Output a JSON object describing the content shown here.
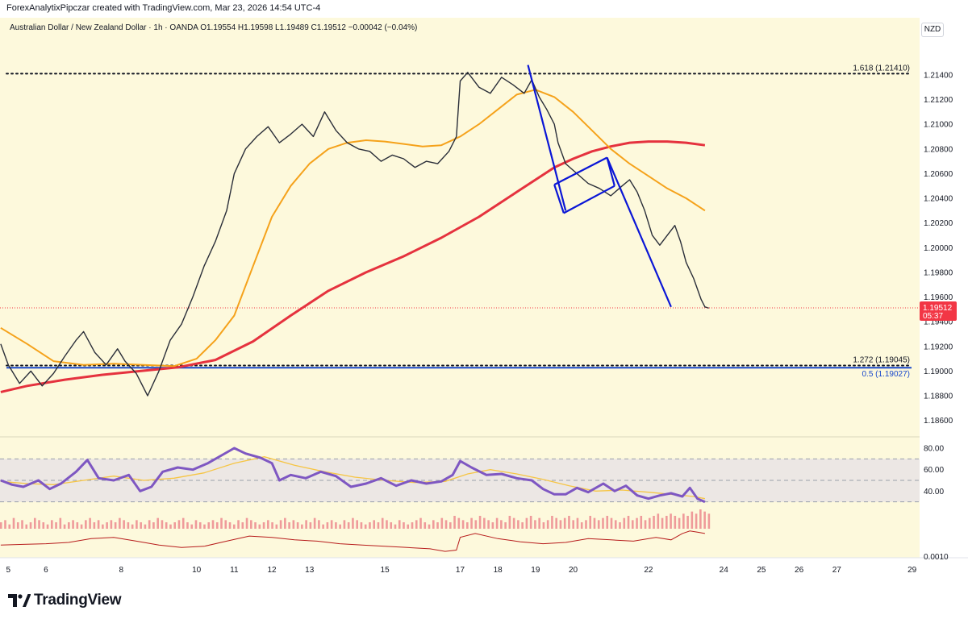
{
  "header": {
    "credit": "ForexAnalytixPipczar created with TradingView.com, Mar 23, 2026 14:54 UTC-4"
  },
  "symbol": {
    "info": "Australian Dollar / New Zealand Dollar · 1h · OANDA  O1.19554  H1.19598  L1.19489  C1.19512  −0.00042 (−0.04%)"
  },
  "currency_label": "NZD",
  "brand": {
    "name": "TradingView",
    "icon": "tradingview-logo-icon"
  },
  "colors": {
    "ema_fast": "#f5a21b",
    "ema_slow": "#e5323e",
    "trend": "#0a16d6",
    "fib": "#131722",
    "fib_blue": "#1848cc",
    "price_tag": "#f23645",
    "rsi": "#7e57c2",
    "rsi_ma": "#f6c544",
    "volume": "#ef9a9a",
    "osc": "#b71c1c"
  },
  "chart_data": [
    {
      "type": "line",
      "title": "",
      "pair": "AUD/NZD",
      "timeframe": "1h",
      "x_ticks": [
        "5",
        "6",
        "8",
        "10",
        "11",
        "12",
        "13",
        "15",
        "17",
        "18",
        "19",
        "20",
        "22",
        "24",
        "25",
        "26",
        "27",
        "29"
      ],
      "x_tick_days": [
        5,
        6,
        8,
        10,
        11,
        12,
        13,
        15,
        17,
        18,
        19,
        20,
        22,
        24,
        25,
        26,
        27,
        29
      ],
      "x_range": [
        4.78,
        29.2
      ],
      "y_ticks": [
        "1.21400",
        "1.21200",
        "1.21000",
        "1.20800",
        "1.20600",
        "1.20400",
        "1.20200",
        "1.20000",
        "1.19800",
        "1.19600",
        "1.19400",
        "1.19200",
        "1.19000",
        "1.18800",
        "1.18600"
      ],
      "ylim": [
        1.1848,
        1.2168
      ],
      "series": [
        {
          "name": "",
          "role": "close",
          "x": [
            4.8,
            5.0,
            5.3,
            5.6,
            5.9,
            6.2,
            6.5,
            6.8,
            7.0,
            7.3,
            7.6,
            7.9,
            8.1,
            8.4,
            8.7,
            9.0,
            9.3,
            9.6,
            9.9,
            10.2,
            10.5,
            10.8,
            11.0,
            11.3,
            11.6,
            11.9,
            12.2,
            12.5,
            12.8,
            13.1,
            13.4,
            13.7,
            14.0,
            14.3,
            14.6,
            14.9,
            15.2,
            15.5,
            15.8,
            16.1,
            16.4,
            16.7,
            16.9,
            17.0,
            17.2,
            17.5,
            17.8,
            18.1,
            18.4,
            18.7,
            18.9,
            19.1,
            19.3,
            19.5,
            19.6,
            19.8,
            20.1,
            20.4,
            20.7,
            21.0,
            21.3,
            21.5,
            21.7,
            21.9,
            22.1,
            22.3,
            22.5,
            22.7,
            22.85,
            23.0,
            23.2,
            23.4,
            23.5,
            23.6
          ],
          "y": [
            1.1922,
            1.1905,
            1.189,
            1.19,
            1.1888,
            1.1898,
            1.1912,
            1.1925,
            1.1932,
            1.1915,
            1.1905,
            1.1918,
            1.1908,
            1.1898,
            1.188,
            1.19,
            1.1925,
            1.1938,
            1.196,
            1.1985,
            1.2005,
            1.203,
            1.206,
            1.208,
            1.209,
            1.2098,
            1.2085,
            1.2092,
            1.21,
            1.209,
            1.211,
            1.2095,
            1.2085,
            1.208,
            1.2078,
            1.207,
            1.2075,
            1.2072,
            1.2065,
            1.207,
            1.2068,
            1.2078,
            1.209,
            1.2135,
            1.2142,
            1.213,
            1.2125,
            1.2138,
            1.2132,
            1.2125,
            1.2136,
            1.2122,
            1.2112,
            1.21,
            1.2085,
            1.2068,
            1.206,
            1.2052,
            1.2048,
            1.2042,
            1.205,
            1.2055,
            1.2045,
            1.203,
            1.201,
            1.2002,
            1.201,
            1.2018,
            1.2005,
            1.1988,
            1.1975,
            1.1958,
            1.1952,
            1.1951
          ]
        },
        {
          "name": "",
          "role": "ema_fast",
          "x": [
            4.8,
            5.5,
            6.2,
            7.0,
            7.8,
            8.6,
            9.4,
            10.0,
            10.5,
            11.0,
            11.5,
            12.0,
            12.5,
            13.0,
            13.5,
            14.0,
            14.5,
            15.0,
            15.5,
            16.0,
            16.5,
            17.0,
            17.5,
            18.0,
            18.5,
            19.0,
            19.5,
            20.0,
            20.5,
            21.0,
            21.5,
            22.0,
            22.5,
            23.0,
            23.5
          ],
          "y": [
            1.1935,
            1.1922,
            1.1908,
            1.1905,
            1.1906,
            1.1905,
            1.1904,
            1.191,
            1.1925,
            1.1945,
            1.1985,
            1.2025,
            1.205,
            1.2068,
            1.208,
            1.2085,
            1.2087,
            1.2086,
            1.2084,
            1.2082,
            1.2083,
            1.209,
            1.21,
            1.2112,
            1.2124,
            1.2128,
            1.2122,
            1.211,
            1.2095,
            1.208,
            1.2068,
            1.2058,
            1.2048,
            1.204,
            1.203
          ]
        },
        {
          "name": "",
          "role": "ema_slow",
          "x": [
            4.8,
            5.5,
            6.5,
            7.5,
            8.5,
            9.5,
            10.5,
            11.5,
            12.5,
            13.5,
            14.5,
            15.5,
            16.5,
            17.5,
            18.5,
            19.5,
            20.0,
            20.5,
            21.0,
            21.5,
            22.0,
            22.5,
            23.0,
            23.5
          ],
          "y": [
            1.1883,
            1.1888,
            1.1893,
            1.1897,
            1.19,
            1.1903,
            1.1909,
            1.1924,
            1.1945,
            1.1965,
            1.198,
            1.1993,
            1.2008,
            1.2025,
            1.2045,
            1.2065,
            1.2072,
            1.2078,
            1.2082,
            1.2085,
            1.2086,
            1.2086,
            1.2085,
            1.2083
          ]
        }
      ],
      "trendlines": [
        {
          "name": "flag-pole-1",
          "from": [
            18.8,
            1.2148
          ],
          "to": [
            19.8,
            1.203
          ]
        },
        {
          "name": "flag-top",
          "from": [
            19.5,
            1.2051
          ],
          "to": [
            20.9,
            1.2073
          ]
        },
        {
          "name": "flag-bottom",
          "from": [
            19.75,
            1.2028
          ],
          "to": [
            21.1,
            1.205
          ]
        },
        {
          "name": "flag-left",
          "from": [
            19.5,
            1.2051
          ],
          "to": [
            19.75,
            1.2028
          ]
        },
        {
          "name": "flag-right",
          "from": [
            20.9,
            1.2073
          ],
          "to": [
            21.1,
            1.205
          ]
        },
        {
          "name": "flag-pole-2",
          "from": [
            20.9,
            1.2073
          ],
          "to": [
            22.6,
            1.1952
          ]
        }
      ],
      "levels": [
        {
          "label": "1.618 (1.21410)",
          "value": 1.2141,
          "style": "dotted",
          "color": "fib"
        },
        {
          "label": "1.272 (1.19045)",
          "value": 1.19045,
          "style": "dotted",
          "color": "fib"
        },
        {
          "label": "0.5 (1.19027)",
          "value": 1.19027,
          "style": "solid",
          "color": "fib_blue"
        }
      ],
      "last_price": {
        "value": 1.19512,
        "label": "1.19512",
        "countdown": "05:37"
      },
      "grid": false
    },
    {
      "type": "line",
      "title": "",
      "role": "rsi",
      "y_ticks": [
        "80.00",
        "60.00",
        "40.00"
      ],
      "ylim": [
        26,
        86
      ],
      "band": [
        30,
        70
      ],
      "midline": 50,
      "series": [
        {
          "name": "",
          "role": "rsi",
          "x": [
            4.8,
            5.1,
            5.4,
            5.8,
            6.1,
            6.4,
            6.8,
            7.1,
            7.4,
            7.8,
            8.2,
            8.5,
            8.8,
            9.1,
            9.5,
            9.9,
            10.3,
            10.7,
            11.0,
            11.3,
            11.7,
            12.0,
            12.2,
            12.5,
            12.9,
            13.3,
            13.7,
            14.1,
            14.5,
            14.9,
            15.3,
            15.7,
            16.1,
            16.5,
            16.8,
            17.0,
            17.3,
            17.7,
            18.1,
            18.5,
            18.9,
            19.2,
            19.5,
            19.8,
            20.1,
            20.4,
            20.8,
            21.1,
            21.4,
            21.7,
            22.0,
            22.3,
            22.6,
            22.9,
            23.1,
            23.3,
            23.5
          ],
          "y": [
            50,
            46,
            44,
            50,
            42,
            47,
            58,
            69,
            52,
            50,
            55,
            40,
            44,
            58,
            62,
            60,
            66,
            74,
            80,
            75,
            71,
            66,
            50,
            55,
            52,
            58,
            54,
            44,
            47,
            52,
            45,
            50,
            47,
            49,
            55,
            68,
            62,
            55,
            56,
            52,
            50,
            42,
            37,
            37,
            43,
            39,
            47,
            40,
            45,
            36,
            33,
            36,
            38,
            35,
            43,
            33,
            30
          ]
        },
        {
          "name": "",
          "role": "rsi_ma",
          "x": [
            4.8,
            5.5,
            6.2,
            7.0,
            7.8,
            8.6,
            9.4,
            10.2,
            11.0,
            11.8,
            12.6,
            13.4,
            14.2,
            15.0,
            15.8,
            16.6,
            17.2,
            17.8,
            18.5,
            19.2,
            19.9,
            20.6,
            21.3,
            22.0,
            22.6,
            23.2,
            23.5
          ],
          "y": [
            49,
            47,
            46,
            50,
            54,
            50,
            52,
            57,
            66,
            72,
            64,
            58,
            53,
            50,
            48,
            49,
            56,
            60,
            56,
            51,
            45,
            40,
            41,
            39,
            37,
            35,
            33
          ]
        }
      ]
    },
    {
      "type": "bar",
      "title": "",
      "role": "volume",
      "x_range": [
        4.8,
        23.6
      ],
      "bar_count": 168,
      "values": [
        3,
        4,
        2,
        5,
        3,
        4,
        2,
        3,
        5,
        4,
        3,
        2,
        4,
        3,
        5,
        2,
        3,
        4,
        3,
        2,
        4,
        5,
        3,
        4,
        2,
        3,
        4,
        3,
        5,
        4,
        3,
        2,
        4,
        3,
        2,
        4,
        3,
        5,
        4,
        3,
        2,
        3,
        4,
        5,
        3,
        2,
        4,
        3,
        2,
        3,
        4,
        3,
        5,
        4,
        3,
        2,
        4,
        3,
        5,
        4,
        3,
        2,
        3,
        4,
        3,
        2,
        4,
        5,
        3,
        4,
        3,
        2,
        4,
        3,
        5,
        4,
        2,
        3,
        4,
        3,
        2,
        4,
        3,
        5,
        4,
        3,
        2,
        3,
        4,
        3,
        5,
        4,
        3,
        2,
        4,
        3,
        2,
        3,
        4,
        5,
        3,
        2,
        4,
        3,
        5,
        4,
        3,
        6,
        5,
        4,
        3,
        5,
        4,
        6,
        5,
        4,
        3,
        5,
        4,
        3,
        6,
        5,
        4,
        3,
        5,
        6,
        4,
        5,
        3,
        4,
        6,
        5,
        4,
        5,
        6,
        4,
        5,
        3,
        4,
        6,
        5,
        4,
        5,
        6,
        5,
        4,
        3,
        5,
        6,
        4,
        5,
        6,
        4,
        5,
        6,
        7,
        5,
        6,
        7,
        6,
        5,
        7,
        6,
        8,
        7,
        9,
        8,
        7
      ]
    },
    {
      "type": "line",
      "title": "",
      "role": "oscillator",
      "y_ticks": [
        "0.0010"
      ],
      "series": [
        {
          "name": "",
          "role": "oscillator",
          "x": [
            4.8,
            5.4,
            6.0,
            6.6,
            7.2,
            7.8,
            8.4,
            9.0,
            9.6,
            10.2,
            10.8,
            11.4,
            12.0,
            12.6,
            13.2,
            13.8,
            14.4,
            15.0,
            15.6,
            16.2,
            16.6,
            16.9,
            17.0,
            17.4,
            18.0,
            18.6,
            19.2,
            19.8,
            20.4,
            21.0,
            21.6,
            22.2,
            22.6,
            22.9,
            23.1,
            23.3,
            23.5
          ],
          "y": [
            0.0028,
            0.0029,
            0.003,
            0.0032,
            0.0038,
            0.004,
            0.0034,
            0.0028,
            0.0024,
            0.0026,
            0.0034,
            0.0042,
            0.004,
            0.0036,
            0.0034,
            0.003,
            0.0028,
            0.0026,
            0.0024,
            0.0022,
            0.0018,
            0.002,
            0.004,
            0.0046,
            0.0038,
            0.0033,
            0.003,
            0.0032,
            0.0038,
            0.0036,
            0.0034,
            0.004,
            0.0036,
            0.0046,
            0.005,
            0.0048,
            0.0046
          ]
        }
      ]
    }
  ]
}
